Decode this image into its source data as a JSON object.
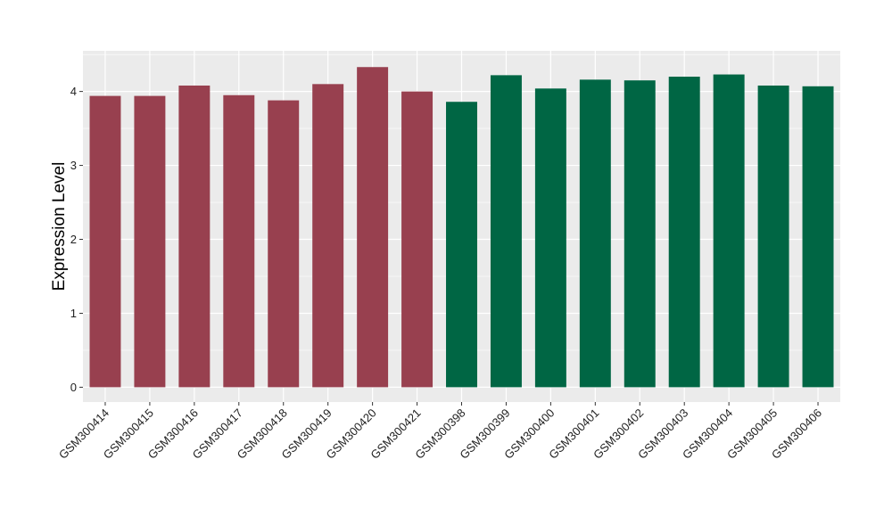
{
  "chart_data": {
    "type": "bar",
    "title": "",
    "xlabel": "",
    "ylabel": "Expression Level",
    "ylim": [
      -0.2,
      4.55
    ],
    "yticks": [
      0,
      1,
      2,
      3,
      4
    ],
    "grid": true,
    "legend": "none",
    "colors": {
      "group1": "#98404F",
      "group2": "#006644",
      "panel": "#EBEBEB",
      "grid": "#FFFFFF"
    },
    "categories": [
      "GSM300414",
      "GSM300415",
      "GSM300416",
      "GSM300417",
      "GSM300418",
      "GSM300419",
      "GSM300420",
      "GSM300421",
      "GSM300398",
      "GSM300399",
      "GSM300400",
      "GSM300401",
      "GSM300402",
      "GSM300403",
      "GSM300404",
      "GSM300405",
      "GSM300406"
    ],
    "values": [
      3.94,
      3.94,
      4.08,
      3.95,
      3.88,
      4.1,
      4.33,
      4.0,
      3.86,
      4.22,
      4.04,
      4.16,
      4.15,
      4.2,
      4.23,
      4.08,
      4.07
    ],
    "groups": [
      1,
      1,
      1,
      1,
      1,
      1,
      1,
      1,
      2,
      2,
      2,
      2,
      2,
      2,
      2,
      2,
      2
    ]
  }
}
